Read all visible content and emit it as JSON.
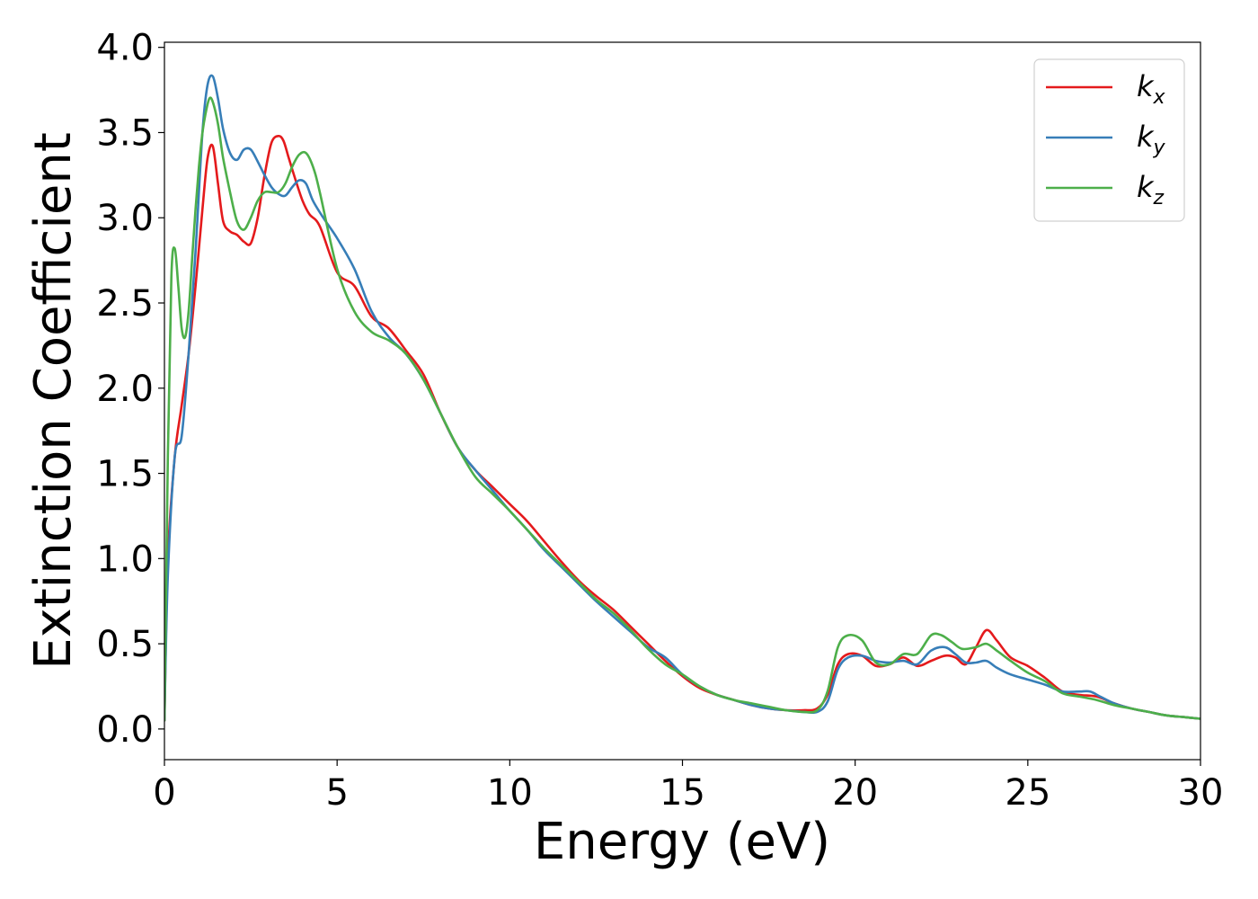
{
  "chart_data": {
    "type": "line",
    "xlabel": "Energy (eV)",
    "ylabel": "Extinction Coefficient",
    "xlim": [
      0,
      30
    ],
    "ylim": [
      -0.18,
      4.03
    ],
    "xticks": [
      0,
      5,
      10,
      15,
      20,
      25,
      30
    ],
    "xtick_labels": [
      "0",
      "5",
      "10",
      "15",
      "20",
      "25",
      "30"
    ],
    "yticks": [
      0.0,
      0.5,
      1.0,
      1.5,
      2.0,
      2.5,
      3.0,
      3.5,
      4.0
    ],
    "ytick_labels": [
      "0.0",
      "0.5",
      "1.0",
      "1.5",
      "2.0",
      "2.5",
      "3.0",
      "3.5",
      "4.0"
    ],
    "grid": false,
    "legend_position": "top-right",
    "series": [
      {
        "name": "k",
        "subscript": "x",
        "color": "#e41a1c",
        "x": [
          0,
          0.1,
          0.3,
          0.5,
          0.7,
          0.9,
          1.1,
          1.25,
          1.4,
          1.55,
          1.7,
          1.9,
          2.1,
          2.3,
          2.5,
          2.7,
          2.9,
          3.1,
          3.3,
          3.45,
          3.6,
          3.8,
          4.0,
          4.2,
          4.5,
          5.0,
          5.5,
          6.0,
          6.5,
          7.0,
          7.5,
          8.0,
          8.5,
          9.0,
          9.5,
          10.0,
          10.5,
          11.0,
          11.5,
          12.0,
          12.5,
          13.0,
          13.5,
          14.0,
          14.5,
          15.0,
          15.5,
          16.0,
          16.5,
          17.0,
          17.5,
          18.0,
          18.5,
          18.9,
          19.2,
          19.5,
          19.8,
          20.2,
          20.6,
          21.0,
          21.4,
          21.8,
          22.2,
          22.6,
          22.9,
          23.2,
          23.5,
          23.8,
          24.1,
          24.5,
          25.0,
          25.5,
          26.0,
          26.5,
          27.0,
          27.5,
          28.0,
          28.5,
          29.0,
          29.5,
          30.0
        ],
        "y": [
          0.05,
          1.0,
          1.6,
          1.9,
          2.2,
          2.6,
          3.05,
          3.35,
          3.42,
          3.2,
          2.98,
          2.92,
          2.9,
          2.86,
          2.85,
          3.0,
          3.25,
          3.44,
          3.48,
          3.45,
          3.35,
          3.22,
          3.1,
          3.02,
          2.95,
          2.68,
          2.6,
          2.42,
          2.35,
          2.22,
          2.08,
          1.85,
          1.65,
          1.52,
          1.42,
          1.32,
          1.22,
          1.1,
          0.98,
          0.87,
          0.78,
          0.7,
          0.6,
          0.5,
          0.4,
          0.31,
          0.24,
          0.2,
          0.17,
          0.14,
          0.12,
          0.11,
          0.11,
          0.12,
          0.2,
          0.38,
          0.44,
          0.43,
          0.37,
          0.38,
          0.42,
          0.37,
          0.4,
          0.43,
          0.42,
          0.38,
          0.48,
          0.58,
          0.52,
          0.42,
          0.37,
          0.3,
          0.22,
          0.2,
          0.19,
          0.15,
          0.12,
          0.1,
          0.08,
          0.07,
          0.06
        ]
      },
      {
        "name": "k",
        "subscript": "y",
        "color": "#377eb8",
        "x": [
          0,
          0.1,
          0.3,
          0.5,
          0.7,
          0.9,
          1.1,
          1.25,
          1.4,
          1.55,
          1.7,
          1.9,
          2.1,
          2.3,
          2.5,
          2.7,
          2.9,
          3.1,
          3.3,
          3.5,
          3.7,
          3.9,
          4.1,
          4.3,
          4.6,
          5.0,
          5.5,
          6.0,
          6.5,
          7.0,
          7.5,
          8.0,
          8.5,
          9.0,
          9.5,
          10.0,
          10.5,
          11.0,
          11.5,
          12.0,
          12.5,
          13.0,
          13.5,
          14.0,
          14.5,
          15.0,
          15.5,
          16.0,
          16.5,
          17.0,
          17.5,
          18.0,
          18.5,
          18.9,
          19.2,
          19.5,
          19.8,
          20.2,
          20.6,
          21.0,
          21.4,
          21.8,
          22.2,
          22.6,
          22.9,
          23.2,
          23.5,
          23.8,
          24.1,
          24.5,
          25.0,
          25.5,
          26.0,
          26.5,
          26.8,
          27.1,
          27.5,
          28.0,
          28.5,
          29.0,
          29.5,
          30.0
        ],
        "y": [
          0.05,
          0.9,
          1.6,
          1.72,
          2.2,
          2.8,
          3.5,
          3.78,
          3.83,
          3.7,
          3.52,
          3.38,
          3.34,
          3.4,
          3.4,
          3.33,
          3.25,
          3.18,
          3.14,
          3.13,
          3.18,
          3.22,
          3.2,
          3.1,
          3.0,
          2.88,
          2.7,
          2.45,
          2.3,
          2.2,
          2.05,
          1.85,
          1.65,
          1.52,
          1.4,
          1.28,
          1.17,
          1.05,
          0.95,
          0.85,
          0.75,
          0.66,
          0.57,
          0.48,
          0.42,
          0.32,
          0.25,
          0.2,
          0.17,
          0.14,
          0.12,
          0.11,
          0.1,
          0.1,
          0.16,
          0.35,
          0.42,
          0.43,
          0.4,
          0.39,
          0.4,
          0.38,
          0.46,
          0.48,
          0.44,
          0.39,
          0.39,
          0.4,
          0.36,
          0.32,
          0.29,
          0.26,
          0.22,
          0.22,
          0.22,
          0.19,
          0.15,
          0.12,
          0.1,
          0.08,
          0.07,
          0.06
        ]
      },
      {
        "name": "k",
        "subscript": "z",
        "color": "#4daf4a",
        "x": [
          0,
          0.1,
          0.2,
          0.3,
          0.4,
          0.5,
          0.6,
          0.7,
          0.8,
          0.9,
          1.0,
          1.1,
          1.2,
          1.3,
          1.4,
          1.55,
          1.7,
          1.9,
          2.1,
          2.3,
          2.5,
          2.7,
          2.9,
          3.1,
          3.3,
          3.5,
          3.7,
          3.9,
          4.1,
          4.3,
          4.5,
          5.0,
          5.5,
          6.0,
          6.5,
          7.0,
          7.5,
          8.0,
          8.5,
          9.0,
          9.5,
          10.0,
          10.5,
          11.0,
          11.5,
          12.0,
          12.5,
          13.0,
          13.5,
          14.0,
          14.5,
          15.0,
          15.5,
          16.0,
          16.5,
          17.0,
          17.5,
          18.0,
          18.5,
          18.9,
          19.2,
          19.5,
          19.8,
          20.2,
          20.6,
          21.0,
          21.4,
          21.8,
          22.2,
          22.5,
          22.8,
          23.1,
          23.5,
          23.8,
          24.1,
          24.5,
          25.0,
          25.5,
          26.0,
          26.5,
          27.0,
          27.5,
          28.0,
          28.5,
          29.0,
          29.5,
          30.0
        ],
        "y": [
          0.05,
          1.6,
          2.65,
          2.82,
          2.6,
          2.35,
          2.3,
          2.45,
          2.75,
          3.05,
          3.3,
          3.5,
          3.62,
          3.7,
          3.68,
          3.55,
          3.35,
          3.15,
          2.98,
          2.93,
          3.0,
          3.1,
          3.15,
          3.15,
          3.15,
          3.2,
          3.3,
          3.37,
          3.38,
          3.3,
          3.15,
          2.7,
          2.45,
          2.33,
          2.28,
          2.2,
          2.05,
          1.85,
          1.65,
          1.48,
          1.38,
          1.28,
          1.17,
          1.06,
          0.96,
          0.86,
          0.76,
          0.68,
          0.58,
          0.47,
          0.38,
          0.32,
          0.25,
          0.2,
          0.17,
          0.15,
          0.13,
          0.11,
          0.1,
          0.11,
          0.22,
          0.48,
          0.55,
          0.52,
          0.39,
          0.38,
          0.44,
          0.44,
          0.55,
          0.55,
          0.51,
          0.47,
          0.48,
          0.5,
          0.46,
          0.4,
          0.33,
          0.28,
          0.21,
          0.19,
          0.17,
          0.14,
          0.12,
          0.1,
          0.08,
          0.07,
          0.06
        ]
      }
    ]
  }
}
